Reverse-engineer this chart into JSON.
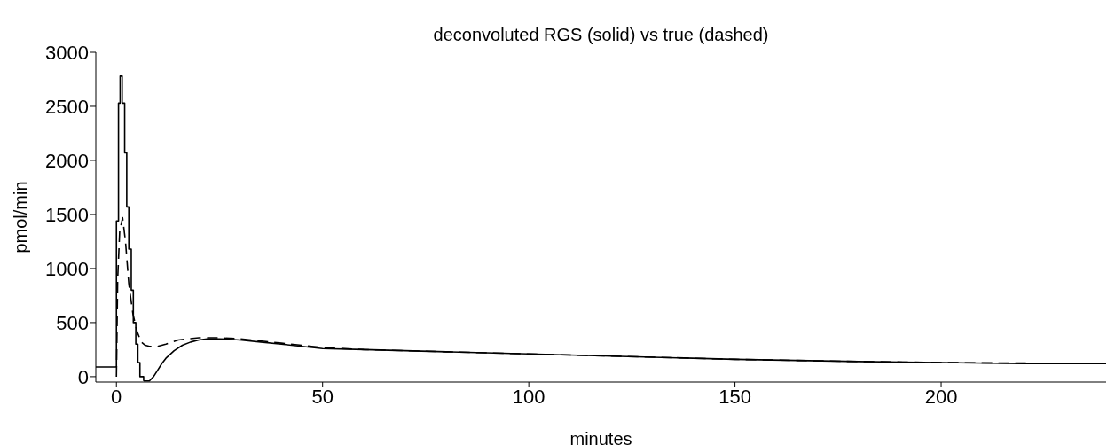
{
  "chart_data": {
    "type": "line",
    "title": "deconvoluted RGS (solid) vs true (dashed)",
    "xlabel": "minutes",
    "ylabel": "pmol/min",
    "xlim": [
      -5,
      240
    ],
    "xticks": [
      0,
      50,
      100,
      150,
      200
    ],
    "ylim": [
      -50,
      3000
    ],
    "yticks": [
      0,
      500,
      1000,
      1500,
      2000,
      2500,
      3000
    ],
    "grid": false,
    "legend": false,
    "series": [
      {
        "type": "step",
        "color": "#000000",
        "line_style": "solid",
        "x": [
          -5,
          0,
          0.5,
          0.9,
          1.4,
          2,
          2.5,
          3,
          3.6,
          4.1,
          4.7,
          5.2,
          5.7,
          6.6
        ],
        "values": [
          90,
          1440,
          2530,
          2780,
          2530,
          2070,
          1570,
          1180,
          800,
          500,
          300,
          130,
          0,
          -40
        ]
      },
      {
        "color": "#000000",
        "line_style": "solid",
        "x": [
          6.6,
          8,
          9,
          10,
          11,
          12,
          14,
          16,
          18,
          20,
          22,
          25,
          30,
          35,
          40,
          50,
          60,
          70,
          80,
          100,
          120,
          150,
          180,
          200,
          220,
          240
        ],
        "values": [
          -40,
          -40,
          0,
          60,
          120,
          170,
          240,
          290,
          320,
          340,
          350,
          350,
          340,
          320,
          300,
          260,
          250,
          240,
          230,
          210,
          190,
          160,
          140,
          130,
          120,
          120
        ]
      },
      {
        "color": "#000000",
        "line_style": "dashed",
        "x": [
          0,
          0.3,
          0.8,
          1.5,
          2.2,
          3,
          4,
          5,
          6,
          7,
          8,
          10,
          12,
          15,
          20,
          25,
          30,
          40,
          50,
          60,
          80,
          100,
          120,
          150,
          180,
          200,
          240
        ],
        "values": [
          0,
          900,
          1350,
          1470,
          1250,
          860,
          580,
          420,
          320,
          290,
          280,
          280,
          300,
          340,
          360,
          360,
          350,
          310,
          270,
          250,
          230,
          210,
          190,
          160,
          140,
          130,
          120
        ]
      }
    ]
  }
}
